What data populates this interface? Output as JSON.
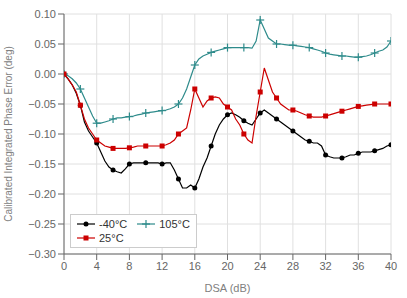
{
  "chart_data": {
    "type": "line",
    "title": "",
    "xlabel": "DSA (dB)",
    "ylabel": "Calibrated Integrated Phase Error (deg)",
    "x": [
      0,
      0.5,
      1,
      1.5,
      2,
      2.5,
      3,
      3.5,
      4,
      4.5,
      5,
      5.5,
      6,
      6.5,
      7,
      7.5,
      8,
      8.5,
      9,
      9.5,
      10,
      10.5,
      11,
      11.5,
      12,
      12.5,
      13,
      13.5,
      14,
      14.5,
      15,
      15.5,
      16,
      16.5,
      17,
      17.5,
      18,
      18.5,
      19,
      19.5,
      20,
      20.5,
      21,
      21.5,
      22,
      22.5,
      23,
      23.5,
      24,
      24.5,
      25,
      25.5,
      26,
      26.5,
      27,
      27.5,
      28,
      28.5,
      29,
      29.5,
      30,
      30.5,
      31,
      31.5,
      32,
      32.5,
      33,
      33.5,
      34,
      34.5,
      35,
      35.5,
      36,
      36.5,
      37,
      37.5,
      38,
      38.5,
      39,
      39.5,
      40
    ],
    "series": [
      {
        "name": "-40°C",
        "color": "#000000",
        "marker": "circle",
        "values": [
          0.0,
          -0.008,
          -0.018,
          -0.032,
          -0.052,
          -0.08,
          -0.095,
          -0.105,
          -0.115,
          -0.13,
          -0.145,
          -0.155,
          -0.16,
          -0.163,
          -0.165,
          -0.158,
          -0.15,
          -0.148,
          -0.148,
          -0.148,
          -0.148,
          -0.148,
          -0.148,
          -0.148,
          -0.15,
          -0.148,
          -0.148,
          -0.16,
          -0.175,
          -0.19,
          -0.19,
          -0.185,
          -0.19,
          -0.175,
          -0.155,
          -0.14,
          -0.12,
          -0.1,
          -0.085,
          -0.075,
          -0.068,
          -0.065,
          -0.068,
          -0.072,
          -0.078,
          -0.082,
          -0.085,
          -0.075,
          -0.065,
          -0.06,
          -0.065,
          -0.07,
          -0.075,
          -0.08,
          -0.085,
          -0.09,
          -0.095,
          -0.1,
          -0.105,
          -0.11,
          -0.112,
          -0.115,
          -0.115,
          -0.12,
          -0.135,
          -0.138,
          -0.14,
          -0.14,
          -0.14,
          -0.138,
          -0.135,
          -0.135,
          -0.132,
          -0.13,
          -0.13,
          -0.13,
          -0.128,
          -0.126,
          -0.124,
          -0.12,
          -0.118
        ]
      },
      {
        "name": "105°C",
        "color": "#2e8b8b",
        "marker": "plus",
        "values": [
          0.0,
          -0.003,
          -0.008,
          -0.015,
          -0.025,
          -0.04,
          -0.055,
          -0.07,
          -0.082,
          -0.082,
          -0.08,
          -0.078,
          -0.075,
          -0.073,
          -0.073,
          -0.072,
          -0.071,
          -0.07,
          -0.068,
          -0.067,
          -0.065,
          -0.064,
          -0.063,
          -0.062,
          -0.061,
          -0.06,
          -0.058,
          -0.055,
          -0.05,
          -0.04,
          -0.025,
          -0.005,
          0.015,
          0.025,
          0.03,
          0.033,
          0.036,
          0.038,
          0.04,
          0.042,
          0.044,
          0.044,
          0.044,
          0.044,
          0.044,
          0.044,
          0.043,
          0.055,
          0.09,
          0.075,
          0.06,
          0.055,
          0.05,
          0.05,
          0.049,
          0.048,
          0.048,
          0.047,
          0.046,
          0.045,
          0.044,
          0.042,
          0.04,
          0.038,
          0.035,
          0.033,
          0.032,
          0.031,
          0.03,
          0.03,
          0.029,
          0.028,
          0.028,
          0.029,
          0.03,
          0.032,
          0.035,
          0.038,
          0.04,
          0.045,
          0.055
        ]
      },
      {
        "name": "25°C",
        "color": "#cc0000",
        "marker": "square",
        "values": [
          0.0,
          -0.008,
          -0.018,
          -0.03,
          -0.052,
          -0.075,
          -0.09,
          -0.1,
          -0.11,
          -0.115,
          -0.12,
          -0.122,
          -0.124,
          -0.124,
          -0.124,
          -0.124,
          -0.123,
          -0.122,
          -0.12,
          -0.12,
          -0.12,
          -0.12,
          -0.12,
          -0.12,
          -0.12,
          -0.118,
          -0.115,
          -0.11,
          -0.1,
          -0.095,
          -0.09,
          -0.06,
          -0.025,
          -0.04,
          -0.055,
          -0.045,
          -0.04,
          -0.038,
          -0.04,
          -0.05,
          -0.055,
          -0.06,
          -0.075,
          -0.085,
          -0.1,
          -0.11,
          -0.115,
          -0.07,
          -0.03,
          0.01,
          -0.01,
          -0.03,
          -0.04,
          -0.05,
          -0.055,
          -0.06,
          -0.06,
          -0.062,
          -0.065,
          -0.068,
          -0.07,
          -0.072,
          -0.072,
          -0.072,
          -0.07,
          -0.068,
          -0.066,
          -0.064,
          -0.062,
          -0.06,
          -0.058,
          -0.056,
          -0.054,
          -0.053,
          -0.052,
          -0.051,
          -0.05,
          -0.05,
          -0.05,
          -0.05,
          -0.05
        ]
      }
    ],
    "xlim": [
      0,
      40
    ],
    "xticks": [
      0,
      4,
      8,
      12,
      16,
      20,
      24,
      28,
      32,
      36,
      40
    ],
    "ylim": [
      -0.3,
      0.1
    ],
    "yticks": [
      {
        "value": -0.3,
        "label": "−0.30"
      },
      {
        "value": -0.25,
        "label": "−0.25"
      },
      {
        "value": -0.2,
        "label": "−0.20"
      },
      {
        "value": -0.15,
        "label": "−0.15"
      },
      {
        "value": -0.1,
        "label": "−0.10"
      },
      {
        "value": -0.05,
        "label": "−0.05"
      },
      {
        "value": 0,
        "label": "0.00"
      },
      {
        "value": 0.05,
        "label": "0.05"
      },
      {
        "value": 0.1,
        "label": "0.10"
      }
    ],
    "grid": true,
    "legend": "lower left"
  }
}
